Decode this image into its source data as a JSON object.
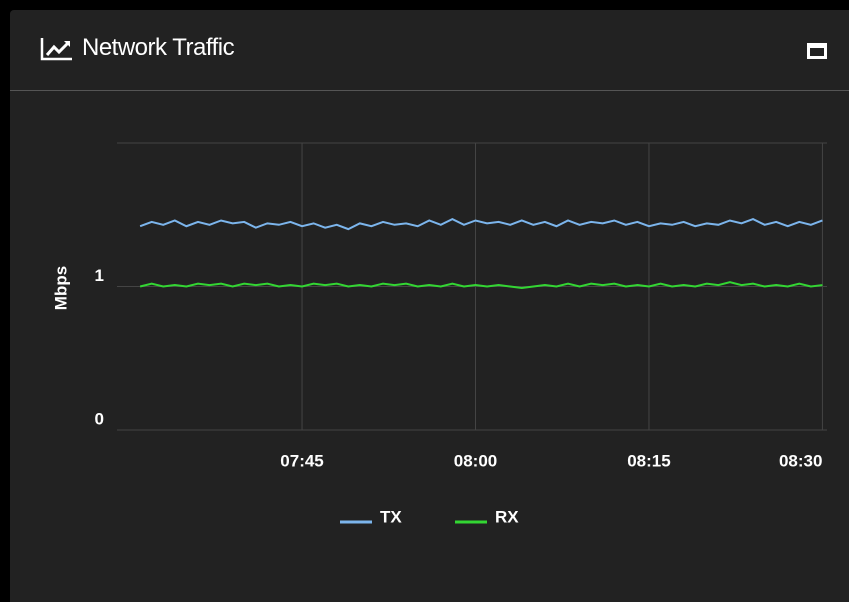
{
  "header": {
    "title": "Network Traffic"
  },
  "chart_data": {
    "type": "line",
    "ylabel": "Mbps",
    "ylim": [
      0,
      2
    ],
    "yticks": [
      0,
      1
    ],
    "xlim": [
      "07:29",
      "08:31"
    ],
    "xticks": [
      "07:45",
      "08:00",
      "08:15",
      "08:30"
    ],
    "grid": true,
    "legend": "bottom",
    "x": [
      "07:31",
      "07:32",
      "07:33",
      "07:34",
      "07:35",
      "07:36",
      "07:37",
      "07:38",
      "07:39",
      "07:40",
      "07:41",
      "07:42",
      "07:43",
      "07:44",
      "07:45",
      "07:46",
      "07:47",
      "07:48",
      "07:49",
      "07:50",
      "07:51",
      "07:52",
      "07:53",
      "07:54",
      "07:55",
      "07:56",
      "07:57",
      "07:58",
      "07:59",
      "08:00",
      "08:01",
      "08:02",
      "08:03",
      "08:04",
      "08:05",
      "08:06",
      "08:07",
      "08:08",
      "08:09",
      "08:10",
      "08:11",
      "08:12",
      "08:13",
      "08:14",
      "08:15",
      "08:16",
      "08:17",
      "08:18",
      "08:19",
      "08:20",
      "08:21",
      "08:22",
      "08:23",
      "08:24",
      "08:25",
      "08:26",
      "08:27",
      "08:28",
      "08:29",
      "08:30"
    ],
    "series": [
      {
        "name": "TX",
        "color": "#7cb5ec",
        "values": [
          1.42,
          1.45,
          1.43,
          1.46,
          1.42,
          1.45,
          1.43,
          1.46,
          1.44,
          1.45,
          1.41,
          1.44,
          1.43,
          1.45,
          1.42,
          1.44,
          1.41,
          1.43,
          1.4,
          1.44,
          1.42,
          1.45,
          1.43,
          1.44,
          1.42,
          1.46,
          1.43,
          1.47,
          1.43,
          1.46,
          1.44,
          1.45,
          1.43,
          1.46,
          1.43,
          1.45,
          1.42,
          1.46,
          1.43,
          1.45,
          1.44,
          1.46,
          1.43,
          1.45,
          1.42,
          1.44,
          1.43,
          1.45,
          1.42,
          1.44,
          1.43,
          1.46,
          1.44,
          1.47,
          1.43,
          1.45,
          1.42,
          1.45,
          1.43,
          1.46
        ]
      },
      {
        "name": "RX",
        "color": "#33d633",
        "values": [
          1.0,
          1.02,
          1.0,
          1.01,
          1.0,
          1.02,
          1.01,
          1.02,
          1.0,
          1.02,
          1.01,
          1.02,
          1.0,
          1.01,
          1.0,
          1.02,
          1.01,
          1.02,
          1.0,
          1.01,
          1.0,
          1.02,
          1.01,
          1.02,
          1.0,
          1.01,
          1.0,
          1.02,
          1.0,
          1.01,
          1.0,
          1.01,
          1.0,
          0.99,
          1.0,
          1.01,
          1.0,
          1.02,
          1.0,
          1.02,
          1.01,
          1.02,
          1.0,
          1.01,
          1.0,
          1.02,
          1.0,
          1.01,
          1.0,
          1.02,
          1.01,
          1.03,
          1.01,
          1.02,
          1.0,
          1.01,
          1.0,
          1.02,
          1.0,
          1.01
        ]
      }
    ]
  }
}
